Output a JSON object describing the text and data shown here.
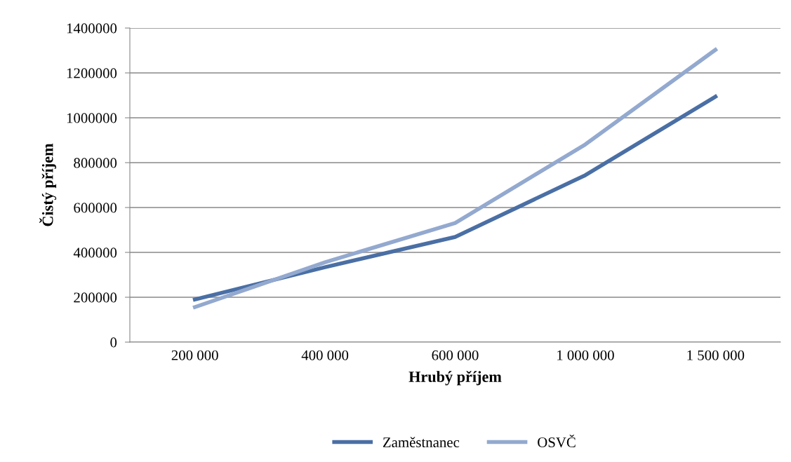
{
  "chart_data": {
    "type": "line",
    "xlabel": "Hrubý příjem",
    "ylabel": "Čistý příjem",
    "categories": [
      "200 000",
      "400 000",
      "600 000",
      "1 000 000",
      "1 500 000"
    ],
    "series": [
      {
        "name": "Zaměstnanec",
        "color": "#4a6fa5",
        "values": [
          190000,
          334000,
          469000,
          744000,
          1094000
        ]
      },
      {
        "name": "OSVČ",
        "color": "#93a9cf",
        "values": [
          156000,
          356000,
          531000,
          881000,
          1303000
        ]
      }
    ],
    "ylim": [
      0,
      1400000
    ],
    "yticks": [
      0,
      200000,
      400000,
      600000,
      800000,
      1000000,
      1200000,
      1400000
    ],
    "grid": "y",
    "legend": "bottom",
    "marker": "none",
    "line_style": "solid"
  }
}
